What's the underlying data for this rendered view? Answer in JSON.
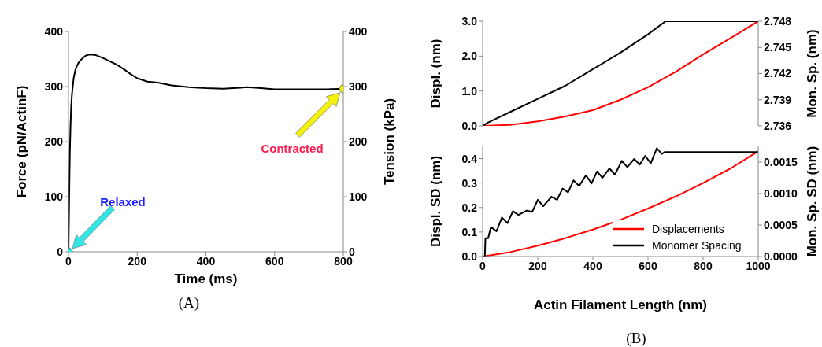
{
  "chart_data": [
    {
      "type": "line",
      "xlabel": "Time (ms)",
      "ylabel": "Force (pN/ActinF)",
      "y2label": "Tension (kPa)",
      "xlim": [
        0,
        800
      ],
      "xticks": [
        0,
        200,
        400,
        600,
        800
      ],
      "ylim": [
        0,
        400
      ],
      "yticks": [
        0,
        100,
        200,
        300,
        400
      ],
      "y2lim": [
        0,
        400
      ],
      "y2ticks": [
        0,
        100,
        200,
        300,
        400
      ],
      "grid": false,
      "legend": false,
      "series": [
        {
          "color": "#000000",
          "x": [
            0,
            2,
            4,
            6,
            8,
            10,
            15,
            20,
            25,
            30,
            40,
            50,
            60,
            70,
            80,
            100,
            120,
            140,
            160,
            180,
            200,
            230,
            260,
            300,
            350,
            400,
            450,
            500,
            520,
            560,
            600,
            650,
            700,
            750,
            800
          ],
          "values": [
            0,
            100,
            180,
            230,
            265,
            285,
            315,
            330,
            338,
            344,
            351,
            356,
            358,
            358,
            357,
            352,
            346,
            340,
            332,
            323,
            315,
            309,
            307,
            302,
            299,
            297,
            296,
            298,
            299,
            297,
            295,
            295,
            295,
            295,
            296
          ]
        },
        {
          "type": "scatter",
          "color": "#33e6e6",
          "x": [
            0
          ],
          "values": [
            0
          ]
        },
        {
          "type": "scatter",
          "color": "#f2f20d",
          "x": [
            800
          ],
          "values": [
            296
          ]
        }
      ],
      "annotations": [
        "Relaxed",
        "Contracted",
        "(A)"
      ]
    },
    {
      "type": "line",
      "ylabel": "Displ. (nm)",
      "y2label": "Mon. Sp. (nm)",
      "xlim": [
        0,
        1000
      ],
      "ylim": [
        0,
        3.0
      ],
      "yticks": [
        {
          "value": 0,
          "label": "0.0"
        },
        {
          "value": 1,
          "label": "1.0"
        },
        {
          "value": 2,
          "label": "2.0"
        },
        {
          "value": 3,
          "label": "3.0"
        }
      ],
      "y2lim": [
        2.736,
        2.748
      ],
      "y2ticks": [
        2.736,
        2.739,
        2.742,
        2.745,
        2.748
      ],
      "tick_labels": "y",
      "grid": false,
      "legend": false,
      "series": [
        {
          "color": "#ff0000",
          "x": [
            0,
            100,
            200,
            300,
            400,
            500,
            600,
            700,
            800,
            900,
            1000
          ],
          "values": [
            0,
            0.03,
            0.13,
            0.27,
            0.45,
            0.75,
            1.11,
            1.55,
            2.05,
            2.52,
            3.0
          ]
        },
        {
          "color": "#000000",
          "axis": "y2",
          "x": [
            0,
            20,
            100,
            200,
            300,
            400,
            500,
            600,
            664,
            1000
          ],
          "values": [
            2.736,
            2.7364,
            2.7376,
            2.7391,
            2.7406,
            2.7425,
            2.7444,
            2.7465,
            2.748,
            2.748
          ]
        }
      ]
    },
    {
      "type": "line",
      "xlabel": "Actin Filament Length (nm)",
      "ylabel": "Displ. SD (nm)",
      "y2label": "Mon. Sp. SD (nm)",
      "xlim": [
        0,
        1000
      ],
      "xticks": [
        0,
        200,
        400,
        600,
        800,
        1000
      ],
      "ylim": [
        0,
        0.45
      ],
      "yticks": [
        {
          "value": 0,
          "label": "0.0"
        },
        0.1,
        0.2,
        0.3,
        0.4
      ],
      "y2lim": [
        0,
        0.00175
      ],
      "y2ticks": [
        {
          "value": 0,
          "label": "0.0000"
        },
        0.0005,
        {
          "value": 0.001,
          "label": "0.0010"
        },
        0.0015
      ],
      "grid": false,
      "legend": "bottom right",
      "series": [
        {
          "name": "Displacements",
          "color": "#ff0000",
          "x": [
            0,
            100,
            200,
            300,
            400,
            500,
            600,
            700,
            800,
            900,
            1000
          ],
          "values": [
            0,
            0.018,
            0.044,
            0.075,
            0.11,
            0.15,
            0.196,
            0.245,
            0.3,
            0.36,
            0.43
          ]
        },
        {
          "name": "Monomer Spacing",
          "color": "#000000",
          "axis": "y2",
          "x": [
            0,
            8,
            10,
            20,
            30,
            50,
            70,
            90,
            110,
            130,
            160,
            180,
            200,
            220,
            250,
            270,
            290,
            310,
            330,
            350,
            375,
            395,
            415,
            435,
            460,
            480,
            505,
            525,
            550,
            570,
            590,
            610,
            632,
            650,
            660,
            1000
          ],
          "values": [
            0,
            0,
            0.00029,
            0.00029,
            0.00047,
            0.0004,
            0.00062,
            0.00053,
            0.00072,
            0.00066,
            0.00073,
            0.00071,
            0.0009,
            0.0008,
            0.00095,
            0.0009,
            0.00108,
            0.00102,
            0.00121,
            0.00112,
            0.00129,
            0.00116,
            0.00135,
            0.00125,
            0.0014,
            0.0013,
            0.00152,
            0.00142,
            0.00155,
            0.00146,
            0.0016,
            0.00148,
            0.00172,
            0.00163,
            0.00166,
            0.00166
          ]
        }
      ],
      "annotations": [
        "(B)"
      ]
    }
  ]
}
